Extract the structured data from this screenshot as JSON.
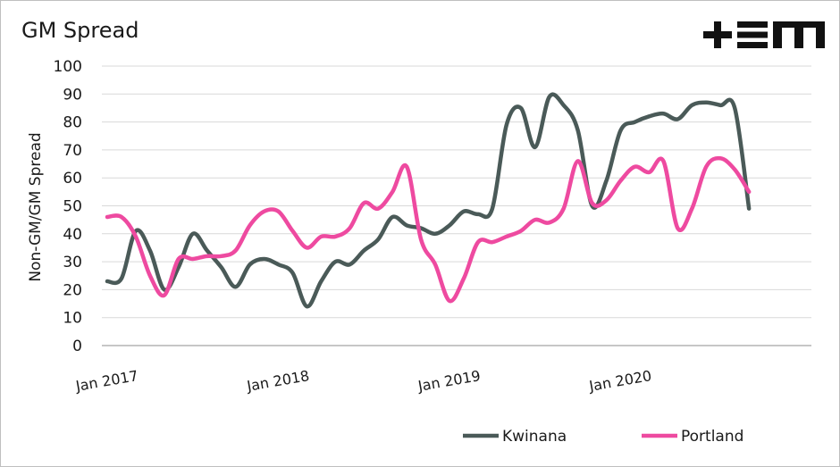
{
  "title": "GM Spread",
  "logo_text": "+EM",
  "chart_data": {
    "type": "line",
    "title": "GM Spread",
    "xlabel": "",
    "ylabel": "Non-GM/GM Spread",
    "ylim": [
      0,
      100
    ],
    "yticks": [
      0,
      10,
      20,
      30,
      40,
      50,
      60,
      70,
      80,
      90,
      100
    ],
    "xticks": [
      "Jan 2017",
      "Jan 2018",
      "Jan 2019",
      "Jan 2020"
    ],
    "x": [
      "2017-01",
      "2017-02",
      "2017-03",
      "2017-04",
      "2017-05",
      "2017-06",
      "2017-07",
      "2017-08",
      "2017-09",
      "2017-10",
      "2017-11",
      "2017-12",
      "2018-01",
      "2018-02",
      "2018-03",
      "2018-04",
      "2018-05",
      "2018-06",
      "2018-07",
      "2018-08",
      "2018-09",
      "2018-10",
      "2018-11",
      "2018-12",
      "2019-01",
      "2019-02",
      "2019-03",
      "2019-04",
      "2019-05",
      "2019-06",
      "2019-07",
      "2019-08",
      "2019-09",
      "2019-10",
      "2019-11",
      "2019-12",
      "2020-01",
      "2020-02",
      "2020-03",
      "2020-04",
      "2020-05",
      "2020-06",
      "2020-07",
      "2020-08",
      "2020-09",
      "2020-10",
      "2020-11",
      "2020-12",
      "2021-01",
      "2021-02"
    ],
    "series": [
      {
        "name": "Kwinana",
        "color": "#4a5a58",
        "values": [
          23,
          24,
          41,
          34,
          20,
          28,
          40,
          34,
          28,
          21,
          29,
          31,
          29,
          26,
          14,
          23,
          30,
          29,
          34,
          38,
          46,
          43,
          42,
          40,
          43,
          48,
          47,
          49,
          79,
          85,
          71,
          89,
          86,
          77,
          50,
          59,
          77,
          80,
          82,
          83,
          81,
          86,
          87,
          86,
          85,
          49,
          null,
          null,
          null,
          null
        ]
      },
      {
        "name": "Portland",
        "color": "#ee4aa0",
        "values": [
          46,
          46,
          39,
          25,
          18,
          31,
          31,
          32,
          32,
          34,
          43,
          48,
          48,
          41,
          35,
          39,
          39,
          42,
          51,
          49,
          55,
          64,
          38,
          29,
          16,
          24,
          37,
          37,
          39,
          41,
          45,
          44,
          49,
          66,
          51,
          52,
          59,
          64,
          62,
          66,
          42,
          49,
          64,
          67,
          63,
          55,
          null,
          null,
          null,
          null
        ]
      }
    ],
    "legend_position": "bottom",
    "grid": true
  }
}
